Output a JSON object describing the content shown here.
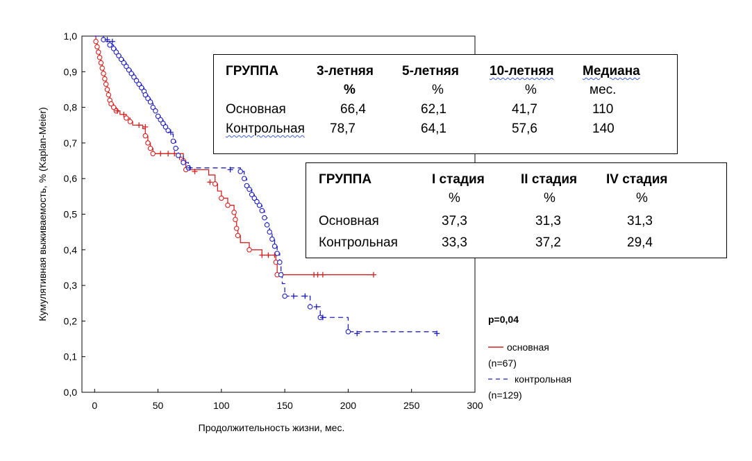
{
  "chart_data": {
    "type": "line",
    "title": "",
    "xlabel": "Продолжительность жизни, мес.",
    "ylabel": "Кумулятивная выживаемость, % (Kaplan-Meier)",
    "xlim": [
      -10,
      300
    ],
    "ylim": [
      0,
      1.0
    ],
    "xticks": [
      0,
      50,
      100,
      150,
      200,
      250,
      300
    ],
    "yticks": [
      "0,0",
      "0,1",
      "0,2",
      "0,3",
      "0,4",
      "0,5",
      "0,6",
      "0,7",
      "0,8",
      "0,9",
      "1,0"
    ],
    "grid": false,
    "legend_position": "right",
    "series": [
      {
        "name": "основная",
        "color": "#d42020",
        "style": "solid",
        "n_label": "(n=67)",
        "steps": [
          [
            0,
            1.0
          ],
          [
            1,
            0.985
          ],
          [
            2,
            0.97
          ],
          [
            3,
            0.955
          ],
          [
            4,
            0.94
          ],
          [
            5,
            0.925
          ],
          [
            6,
            0.91
          ],
          [
            7,
            0.895
          ],
          [
            8,
            0.88
          ],
          [
            9,
            0.865
          ],
          [
            10,
            0.85
          ],
          [
            11,
            0.835
          ],
          [
            12,
            0.82
          ],
          [
            13,
            0.81
          ],
          [
            15,
            0.8
          ],
          [
            17,
            0.79
          ],
          [
            20,
            0.78
          ],
          [
            25,
            0.77
          ],
          [
            28,
            0.76
          ],
          [
            30,
            0.75
          ],
          [
            38,
            0.74
          ],
          [
            40,
            0.72
          ],
          [
            42,
            0.7
          ],
          [
            44,
            0.685
          ],
          [
            46,
            0.67
          ],
          [
            70,
            0.65
          ],
          [
            72,
            0.625
          ],
          [
            90,
            0.61
          ],
          [
            95,
            0.585
          ],
          [
            97,
            0.565
          ],
          [
            100,
            0.545
          ],
          [
            105,
            0.525
          ],
          [
            110,
            0.505
          ],
          [
            111,
            0.485
          ],
          [
            112,
            0.46
          ],
          [
            113,
            0.44
          ],
          [
            115,
            0.42
          ],
          [
            122,
            0.4
          ],
          [
            132,
            0.385
          ],
          [
            143,
            0.365
          ],
          [
            144,
            0.33
          ],
          [
            220,
            0.33
          ]
        ],
        "censored": [
          [
            18,
            0.79
          ],
          [
            23,
            0.78
          ],
          [
            35,
            0.75
          ],
          [
            40,
            0.745
          ],
          [
            52,
            0.67
          ],
          [
            58,
            0.67
          ],
          [
            63,
            0.67
          ],
          [
            67,
            0.66
          ],
          [
            79,
            0.62
          ],
          [
            91,
            0.59
          ],
          [
            132,
            0.385
          ],
          [
            137,
            0.385
          ],
          [
            142,
            0.385
          ],
          [
            148,
            0.33
          ],
          [
            173,
            0.33
          ],
          [
            176,
            0.33
          ],
          [
            180,
            0.33
          ],
          [
            220,
            0.33
          ]
        ],
        "events": [
          [
            1,
            0.985
          ],
          [
            2,
            0.97
          ],
          [
            3,
            0.955
          ],
          [
            4,
            0.94
          ],
          [
            5,
            0.925
          ],
          [
            6,
            0.91
          ],
          [
            7,
            0.895
          ],
          [
            8,
            0.88
          ],
          [
            9,
            0.865
          ],
          [
            10,
            0.85
          ],
          [
            11,
            0.835
          ],
          [
            12,
            0.82
          ],
          [
            13,
            0.81
          ],
          [
            15,
            0.8
          ],
          [
            17,
            0.79
          ],
          [
            25,
            0.77
          ],
          [
            28,
            0.76
          ],
          [
            40,
            0.72
          ],
          [
            42,
            0.7
          ],
          [
            44,
            0.685
          ],
          [
            46,
            0.67
          ],
          [
            70,
            0.65
          ],
          [
            72,
            0.625
          ],
          [
            95,
            0.585
          ],
          [
            100,
            0.545
          ],
          [
            105,
            0.525
          ],
          [
            110,
            0.505
          ],
          [
            111,
            0.485
          ],
          [
            112,
            0.46
          ],
          [
            113,
            0.44
          ],
          [
            122,
            0.4
          ],
          [
            143,
            0.365
          ],
          [
            144,
            0.33
          ]
        ]
      },
      {
        "name": "контрольная",
        "color": "#1f1fbf",
        "style": "dashed",
        "n_label": "(n=129)",
        "steps": [
          [
            0,
            1.0
          ],
          [
            7,
            0.99
          ],
          [
            9,
            0.985
          ],
          [
            12,
            0.975
          ],
          [
            15,
            0.965
          ],
          [
            17,
            0.955
          ],
          [
            19,
            0.945
          ],
          [
            21,
            0.935
          ],
          [
            23,
            0.925
          ],
          [
            25,
            0.915
          ],
          [
            27,
            0.905
          ],
          [
            29,
            0.895
          ],
          [
            31,
            0.885
          ],
          [
            33,
            0.875
          ],
          [
            35,
            0.865
          ],
          [
            37,
            0.855
          ],
          [
            39,
            0.845
          ],
          [
            40,
            0.835
          ],
          [
            42,
            0.825
          ],
          [
            44,
            0.815
          ],
          [
            46,
            0.8
          ],
          [
            48,
            0.79
          ],
          [
            50,
            0.775
          ],
          [
            52,
            0.765
          ],
          [
            54,
            0.755
          ],
          [
            56,
            0.745
          ],
          [
            58,
            0.735
          ],
          [
            60,
            0.725
          ],
          [
            62,
            0.705
          ],
          [
            64,
            0.685
          ],
          [
            66,
            0.665
          ],
          [
            70,
            0.645
          ],
          [
            74,
            0.63
          ],
          [
            115,
            0.62
          ],
          [
            118,
            0.6
          ],
          [
            120,
            0.58
          ],
          [
            122,
            0.57
          ],
          [
            124,
            0.555
          ],
          [
            126,
            0.545
          ],
          [
            128,
            0.535
          ],
          [
            130,
            0.525
          ],
          [
            132,
            0.51
          ],
          [
            134,
            0.49
          ],
          [
            136,
            0.47
          ],
          [
            138,
            0.45
          ],
          [
            140,
            0.43
          ],
          [
            142,
            0.41
          ],
          [
            144,
            0.39
          ],
          [
            146,
            0.365
          ],
          [
            147,
            0.33
          ],
          [
            148,
            0.305
          ],
          [
            150,
            0.27
          ],
          [
            170,
            0.24
          ],
          [
            178,
            0.21
          ],
          [
            200,
            0.17
          ],
          [
            270,
            0.165
          ]
        ],
        "censored": [
          [
            10,
            0.99
          ],
          [
            14,
            0.985
          ],
          [
            60,
            0.73
          ],
          [
            75,
            0.63
          ],
          [
            107,
            0.625
          ],
          [
            157,
            0.27
          ],
          [
            166,
            0.27
          ],
          [
            175,
            0.24
          ],
          [
            180,
            0.21
          ],
          [
            207,
            0.165
          ],
          [
            270,
            0.165
          ]
        ],
        "events": [
          [
            7,
            0.99
          ],
          [
            12,
            0.975
          ],
          [
            15,
            0.965
          ],
          [
            17,
            0.955
          ],
          [
            19,
            0.945
          ],
          [
            21,
            0.935
          ],
          [
            23,
            0.925
          ],
          [
            25,
            0.915
          ],
          [
            27,
            0.905
          ],
          [
            29,
            0.895
          ],
          [
            31,
            0.885
          ],
          [
            33,
            0.875
          ],
          [
            35,
            0.865
          ],
          [
            37,
            0.855
          ],
          [
            39,
            0.845
          ],
          [
            40,
            0.835
          ],
          [
            42,
            0.825
          ],
          [
            44,
            0.815
          ],
          [
            46,
            0.8
          ],
          [
            48,
            0.79
          ],
          [
            50,
            0.775
          ],
          [
            52,
            0.765
          ],
          [
            54,
            0.755
          ],
          [
            56,
            0.745
          ],
          [
            58,
            0.735
          ],
          [
            62,
            0.705
          ],
          [
            64,
            0.685
          ],
          [
            66,
            0.665
          ],
          [
            70,
            0.645
          ],
          [
            74,
            0.63
          ],
          [
            115,
            0.62
          ],
          [
            118,
            0.6
          ],
          [
            120,
            0.58
          ],
          [
            122,
            0.57
          ],
          [
            124,
            0.555
          ],
          [
            126,
            0.545
          ],
          [
            128,
            0.535
          ],
          [
            130,
            0.525
          ],
          [
            132,
            0.51
          ],
          [
            134,
            0.49
          ],
          [
            136,
            0.47
          ],
          [
            138,
            0.45
          ],
          [
            140,
            0.43
          ],
          [
            142,
            0.41
          ],
          [
            144,
            0.39
          ],
          [
            146,
            0.365
          ],
          [
            147,
            0.33
          ],
          [
            150,
            0.27
          ],
          [
            170,
            0.24
          ],
          [
            178,
            0.21
          ],
          [
            200,
            0.17
          ]
        ]
      }
    ],
    "annotation": "p=0,04"
  },
  "table1": {
    "headers": [
      "ГРУППА",
      "3-летняя",
      "5-летняя",
      "10-летняя",
      "Медиана"
    ],
    "subheaders": [
      "",
      "%",
      "%",
      "%",
      "мес."
    ],
    "rows": [
      [
        "Основная",
        "66,4",
        "62,1",
        "41,7",
        "110"
      ],
      [
        "Контрольная",
        "78,7",
        "64,1",
        "57,6",
        "140"
      ]
    ]
  },
  "table2": {
    "headers": [
      "ГРУППА",
      "I стадия",
      "II стадия",
      "IV стадия"
    ],
    "subheaders": [
      "",
      "%",
      "%",
      "%"
    ],
    "rows": [
      [
        "Основная",
        "37,3",
        "31,3",
        "31,3"
      ],
      [
        "Контрольная",
        "33,3",
        "37,2",
        "29,4"
      ]
    ]
  },
  "legend": {
    "items": [
      {
        "label": "основная",
        "n": "(n=67)"
      },
      {
        "label": "контрольная",
        "n": "(n=129)"
      }
    ]
  }
}
